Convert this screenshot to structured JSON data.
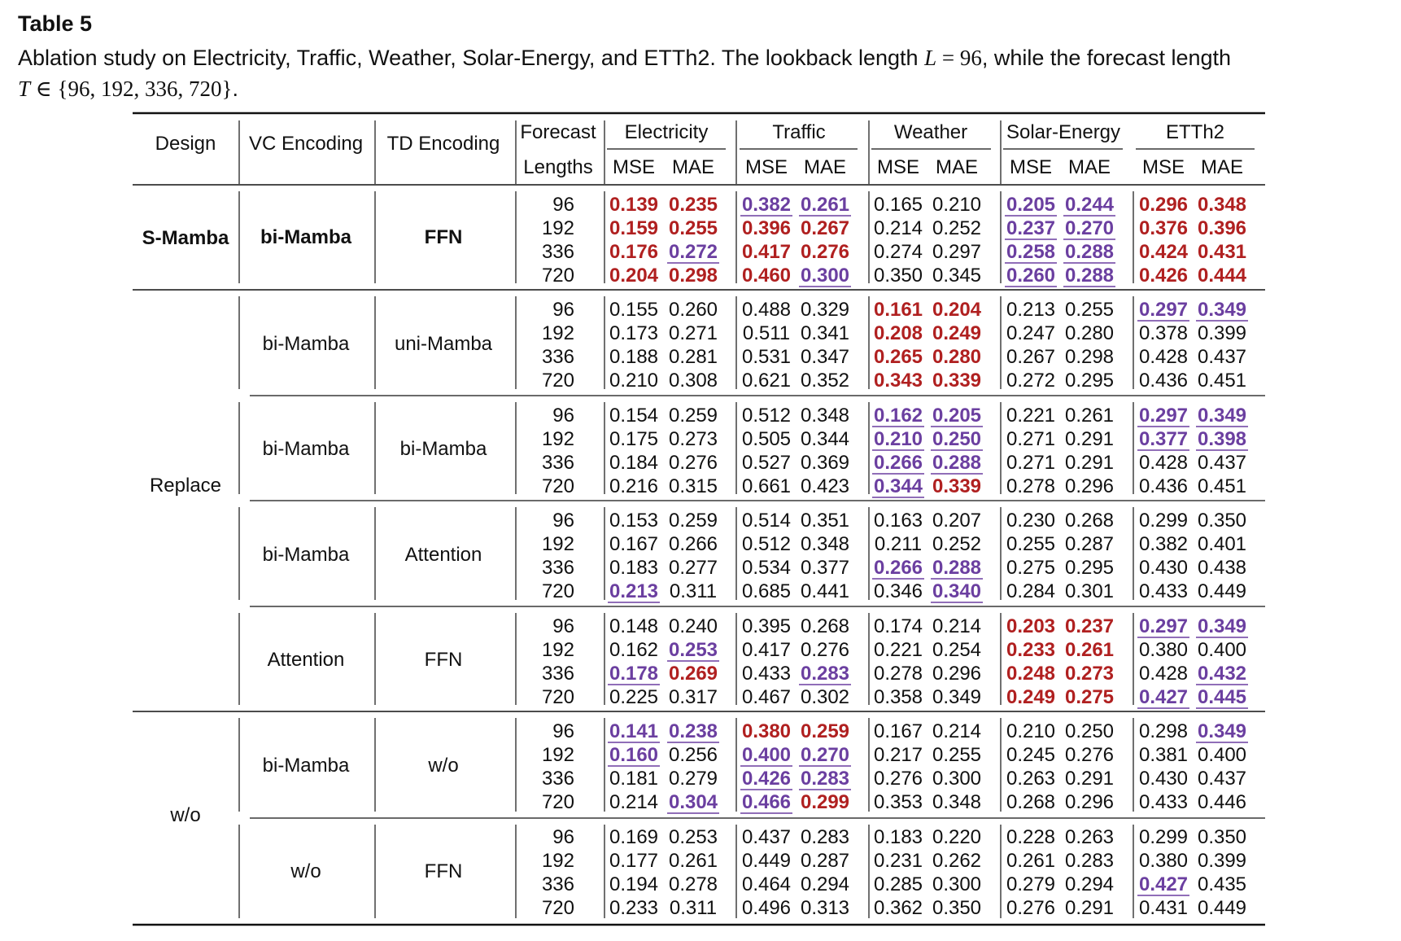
{
  "table_label": "Table 5",
  "caption": {
    "part1": "Ablation study on Electricity, Traffic, Weather, Solar-Energy, and ETTh2. The lookback length ",
    "L_symbol": "L",
    "L_value": " = 96",
    "part2": ", while the forecast length ",
    "T_symbol": "T",
    "T_set": " ∈ {96, 192, 336, 720}",
    "end": "."
  },
  "colors": {
    "best": "#b02020",
    "second": "#6b3fa0"
  },
  "header": {
    "design": "Design",
    "vc": "VC Encoding",
    "td": "TD Encoding",
    "forecast": "Forecast",
    "lengths": "Lengths",
    "datasets": [
      "Electricity",
      "Traffic",
      "Weather",
      "Solar-Energy",
      "ETTh2"
    ],
    "metrics": [
      "MSE",
      "MAE"
    ]
  },
  "design_labels": [
    {
      "label": "S-Mamba",
      "bold": true
    },
    {
      "label": "Replace",
      "bold": false
    },
    {
      "label": "w/o",
      "bold": false
    }
  ],
  "horizons": [
    "96",
    "192",
    "336",
    "720"
  ],
  "groups": [
    {
      "vc": "bi-Mamba",
      "td": "FFN",
      "bold": true,
      "rows": [
        [
          [
            "0.139",
            "b"
          ],
          [
            "0.235",
            "b"
          ],
          [
            "0.382",
            "s"
          ],
          [
            "0.261",
            "s"
          ],
          [
            "0.165",
            ""
          ],
          [
            "0.210",
            ""
          ],
          [
            "0.205",
            "s"
          ],
          [
            "0.244",
            "s"
          ],
          [
            "0.296",
            "b"
          ],
          [
            "0.348",
            "b"
          ]
        ],
        [
          [
            "0.159",
            "b"
          ],
          [
            "0.255",
            "b"
          ],
          [
            "0.396",
            "b"
          ],
          [
            "0.267",
            "b"
          ],
          [
            "0.214",
            ""
          ],
          [
            "0.252",
            ""
          ],
          [
            "0.237",
            "s"
          ],
          [
            "0.270",
            "s"
          ],
          [
            "0.376",
            "b"
          ],
          [
            "0.396",
            "b"
          ]
        ],
        [
          [
            "0.176",
            "b"
          ],
          [
            "0.272",
            "s"
          ],
          [
            "0.417",
            "b"
          ],
          [
            "0.276",
            "b"
          ],
          [
            "0.274",
            ""
          ],
          [
            "0.297",
            ""
          ],
          [
            "0.258",
            "s"
          ],
          [
            "0.288",
            "s"
          ],
          [
            "0.424",
            "b"
          ],
          [
            "0.431",
            "b"
          ]
        ],
        [
          [
            "0.204",
            "b"
          ],
          [
            "0.298",
            "b"
          ],
          [
            "0.460",
            "b"
          ],
          [
            "0.300",
            "s"
          ],
          [
            "0.350",
            ""
          ],
          [
            "0.345",
            ""
          ],
          [
            "0.260",
            "s"
          ],
          [
            "0.288",
            "s"
          ],
          [
            "0.426",
            "b"
          ],
          [
            "0.444",
            "b"
          ]
        ]
      ]
    },
    {
      "vc": "bi-Mamba",
      "td": "uni-Mamba",
      "bold": false,
      "rows": [
        [
          [
            "0.155",
            ""
          ],
          [
            "0.260",
            ""
          ],
          [
            "0.488",
            ""
          ],
          [
            "0.329",
            ""
          ],
          [
            "0.161",
            "b"
          ],
          [
            "0.204",
            "b"
          ],
          [
            "0.213",
            ""
          ],
          [
            "0.255",
            ""
          ],
          [
            "0.297",
            "s"
          ],
          [
            "0.349",
            "s"
          ]
        ],
        [
          [
            "0.173",
            ""
          ],
          [
            "0.271",
            ""
          ],
          [
            "0.511",
            ""
          ],
          [
            "0.341",
            ""
          ],
          [
            "0.208",
            "b"
          ],
          [
            "0.249",
            "b"
          ],
          [
            "0.247",
            ""
          ],
          [
            "0.280",
            ""
          ],
          [
            "0.378",
            ""
          ],
          [
            "0.399",
            ""
          ]
        ],
        [
          [
            "0.188",
            ""
          ],
          [
            "0.281",
            ""
          ],
          [
            "0.531",
            ""
          ],
          [
            "0.347",
            ""
          ],
          [
            "0.265",
            "b"
          ],
          [
            "0.280",
            "b"
          ],
          [
            "0.267",
            ""
          ],
          [
            "0.298",
            ""
          ],
          [
            "0.428",
            ""
          ],
          [
            "0.437",
            ""
          ]
        ],
        [
          [
            "0.210",
            ""
          ],
          [
            "0.308",
            ""
          ],
          [
            "0.621",
            ""
          ],
          [
            "0.352",
            ""
          ],
          [
            "0.343",
            "b"
          ],
          [
            "0.339",
            "b"
          ],
          [
            "0.272",
            ""
          ],
          [
            "0.295",
            ""
          ],
          [
            "0.436",
            ""
          ],
          [
            "0.451",
            ""
          ]
        ]
      ]
    },
    {
      "vc": "bi-Mamba",
      "td": "bi-Mamba",
      "bold": false,
      "rows": [
        [
          [
            "0.154",
            ""
          ],
          [
            "0.259",
            ""
          ],
          [
            "0.512",
            ""
          ],
          [
            "0.348",
            ""
          ],
          [
            "0.162",
            "s"
          ],
          [
            "0.205",
            "s"
          ],
          [
            "0.221",
            ""
          ],
          [
            "0.261",
            ""
          ],
          [
            "0.297",
            "s"
          ],
          [
            "0.349",
            "s"
          ]
        ],
        [
          [
            "0.175",
            ""
          ],
          [
            "0.273",
            ""
          ],
          [
            "0.505",
            ""
          ],
          [
            "0.344",
            ""
          ],
          [
            "0.210",
            "s"
          ],
          [
            "0.250",
            "s"
          ],
          [
            "0.271",
            ""
          ],
          [
            "0.291",
            ""
          ],
          [
            "0.377",
            "s"
          ],
          [
            "0.398",
            "s"
          ]
        ],
        [
          [
            "0.184",
            ""
          ],
          [
            "0.276",
            ""
          ],
          [
            "0.527",
            ""
          ],
          [
            "0.369",
            ""
          ],
          [
            "0.266",
            "s"
          ],
          [
            "0.288",
            "s"
          ],
          [
            "0.271",
            ""
          ],
          [
            "0.291",
            ""
          ],
          [
            "0.428",
            ""
          ],
          [
            "0.437",
            ""
          ]
        ],
        [
          [
            "0.216",
            ""
          ],
          [
            "0.315",
            ""
          ],
          [
            "0.661",
            ""
          ],
          [
            "0.423",
            ""
          ],
          [
            "0.344",
            "s"
          ],
          [
            "0.339",
            "b"
          ],
          [
            "0.278",
            ""
          ],
          [
            "0.296",
            ""
          ],
          [
            "0.436",
            ""
          ],
          [
            "0.451",
            ""
          ]
        ]
      ]
    },
    {
      "vc": "bi-Mamba",
      "td": "Attention",
      "bold": false,
      "rows": [
        [
          [
            "0.153",
            ""
          ],
          [
            "0.259",
            ""
          ],
          [
            "0.514",
            ""
          ],
          [
            "0.351",
            ""
          ],
          [
            "0.163",
            ""
          ],
          [
            "0.207",
            ""
          ],
          [
            "0.230",
            ""
          ],
          [
            "0.268",
            ""
          ],
          [
            "0.299",
            ""
          ],
          [
            "0.350",
            ""
          ]
        ],
        [
          [
            "0.167",
            ""
          ],
          [
            "0.266",
            ""
          ],
          [
            "0.512",
            ""
          ],
          [
            "0.348",
            ""
          ],
          [
            "0.211",
            ""
          ],
          [
            "0.252",
            ""
          ],
          [
            "0.255",
            ""
          ],
          [
            "0.287",
            ""
          ],
          [
            "0.382",
            ""
          ],
          [
            "0.401",
            ""
          ]
        ],
        [
          [
            "0.183",
            ""
          ],
          [
            "0.277",
            ""
          ],
          [
            "0.534",
            ""
          ],
          [
            "0.377",
            ""
          ],
          [
            "0.266",
            "s"
          ],
          [
            "0.288",
            "s"
          ],
          [
            "0.275",
            ""
          ],
          [
            "0.295",
            ""
          ],
          [
            "0.430",
            ""
          ],
          [
            "0.438",
            ""
          ]
        ],
        [
          [
            "0.213",
            "s"
          ],
          [
            "0.311",
            ""
          ],
          [
            "0.685",
            ""
          ],
          [
            "0.441",
            ""
          ],
          [
            "0.346",
            ""
          ],
          [
            "0.340",
            "s"
          ],
          [
            "0.284",
            ""
          ],
          [
            "0.301",
            ""
          ],
          [
            "0.433",
            ""
          ],
          [
            "0.449",
            ""
          ]
        ]
      ]
    },
    {
      "vc": "Attention",
      "td": "FFN",
      "bold": false,
      "rows": [
        [
          [
            "0.148",
            ""
          ],
          [
            "0.240",
            ""
          ],
          [
            "0.395",
            ""
          ],
          [
            "0.268",
            ""
          ],
          [
            "0.174",
            ""
          ],
          [
            "0.214",
            ""
          ],
          [
            "0.203",
            "b"
          ],
          [
            "0.237",
            "b"
          ],
          [
            "0.297",
            "s"
          ],
          [
            "0.349",
            "s"
          ]
        ],
        [
          [
            "0.162",
            ""
          ],
          [
            "0.253",
            "s"
          ],
          [
            "0.417",
            ""
          ],
          [
            "0.276",
            ""
          ],
          [
            "0.221",
            ""
          ],
          [
            "0.254",
            ""
          ],
          [
            "0.233",
            "b"
          ],
          [
            "0.261",
            "b"
          ],
          [
            "0.380",
            ""
          ],
          [
            "0.400",
            ""
          ]
        ],
        [
          [
            "0.178",
            "s"
          ],
          [
            "0.269",
            "b"
          ],
          [
            "0.433",
            ""
          ],
          [
            "0.283",
            "s"
          ],
          [
            "0.278",
            ""
          ],
          [
            "0.296",
            ""
          ],
          [
            "0.248",
            "b"
          ],
          [
            "0.273",
            "b"
          ],
          [
            "0.428",
            ""
          ],
          [
            "0.432",
            "s"
          ]
        ],
        [
          [
            "0.225",
            ""
          ],
          [
            "0.317",
            ""
          ],
          [
            "0.467",
            ""
          ],
          [
            "0.302",
            ""
          ],
          [
            "0.358",
            ""
          ],
          [
            "0.349",
            ""
          ],
          [
            "0.249",
            "b"
          ],
          [
            "0.275",
            "b"
          ],
          [
            "0.427",
            "s"
          ],
          [
            "0.445",
            "s"
          ]
        ]
      ]
    },
    {
      "vc": "bi-Mamba",
      "td": "w/o",
      "bold": false,
      "rows": [
        [
          [
            "0.141",
            "s"
          ],
          [
            "0.238",
            "s"
          ],
          [
            "0.380",
            "b"
          ],
          [
            "0.259",
            "b"
          ],
          [
            "0.167",
            ""
          ],
          [
            "0.214",
            ""
          ],
          [
            "0.210",
            ""
          ],
          [
            "0.250",
            ""
          ],
          [
            "0.298",
            ""
          ],
          [
            "0.349",
            "s"
          ]
        ],
        [
          [
            "0.160",
            "s"
          ],
          [
            "0.256",
            ""
          ],
          [
            "0.400",
            "s"
          ],
          [
            "0.270",
            "s"
          ],
          [
            "0.217",
            ""
          ],
          [
            "0.255",
            ""
          ],
          [
            "0.245",
            ""
          ],
          [
            "0.276",
            ""
          ],
          [
            "0.381",
            ""
          ],
          [
            "0.400",
            ""
          ]
        ],
        [
          [
            "0.181",
            ""
          ],
          [
            "0.279",
            ""
          ],
          [
            "0.426",
            "s"
          ],
          [
            "0.283",
            "s"
          ],
          [
            "0.276",
            ""
          ],
          [
            "0.300",
            ""
          ],
          [
            "0.263",
            ""
          ],
          [
            "0.291",
            ""
          ],
          [
            "0.430",
            ""
          ],
          [
            "0.437",
            ""
          ]
        ],
        [
          [
            "0.214",
            ""
          ],
          [
            "0.304",
            "s"
          ],
          [
            "0.466",
            "s"
          ],
          [
            "0.299",
            "b"
          ],
          [
            "0.353",
            ""
          ],
          [
            "0.348",
            ""
          ],
          [
            "0.268",
            ""
          ],
          [
            "0.296",
            ""
          ],
          [
            "0.433",
            ""
          ],
          [
            "0.446",
            ""
          ]
        ]
      ]
    },
    {
      "vc": "w/o",
      "td": "FFN",
      "bold": false,
      "rows": [
        [
          [
            "0.169",
            ""
          ],
          [
            "0.253",
            ""
          ],
          [
            "0.437",
            ""
          ],
          [
            "0.283",
            ""
          ],
          [
            "0.183",
            ""
          ],
          [
            "0.220",
            ""
          ],
          [
            "0.228",
            ""
          ],
          [
            "0.263",
            ""
          ],
          [
            "0.299",
            ""
          ],
          [
            "0.350",
            ""
          ]
        ],
        [
          [
            "0.177",
            ""
          ],
          [
            "0.261",
            ""
          ],
          [
            "0.449",
            ""
          ],
          [
            "0.287",
            ""
          ],
          [
            "0.231",
            ""
          ],
          [
            "0.262",
            ""
          ],
          [
            "0.261",
            ""
          ],
          [
            "0.283",
            ""
          ],
          [
            "0.380",
            ""
          ],
          [
            "0.399",
            ""
          ]
        ],
        [
          [
            "0.194",
            ""
          ],
          [
            "0.278",
            ""
          ],
          [
            "0.464",
            ""
          ],
          [
            "0.294",
            ""
          ],
          [
            "0.285",
            ""
          ],
          [
            "0.300",
            ""
          ],
          [
            "0.279",
            ""
          ],
          [
            "0.294",
            ""
          ],
          [
            "0.427",
            "s"
          ],
          [
            "0.435",
            ""
          ]
        ],
        [
          [
            "0.233",
            ""
          ],
          [
            "0.311",
            ""
          ],
          [
            "0.496",
            ""
          ],
          [
            "0.313",
            ""
          ],
          [
            "0.362",
            ""
          ],
          [
            "0.350",
            ""
          ],
          [
            "0.276",
            ""
          ],
          [
            "0.291",
            ""
          ],
          [
            "0.431",
            ""
          ],
          [
            "0.449",
            ""
          ]
        ]
      ]
    }
  ]
}
